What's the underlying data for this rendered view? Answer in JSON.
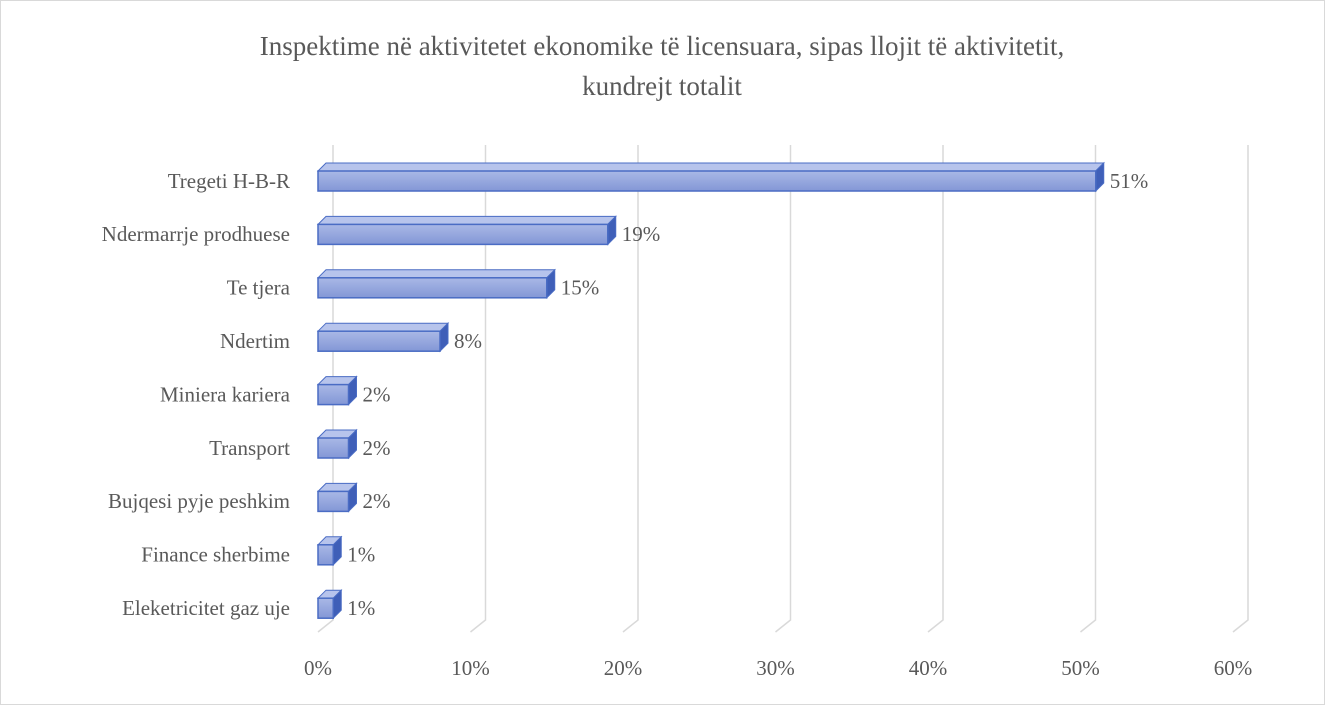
{
  "chart_data": {
    "type": "bar",
    "orientation": "horizontal",
    "title": "Inspektime në aktivitetet ekonomike të licensuara, sipas llojit të aktivitetit, kundrejt totalit",
    "categories": [
      "Tregeti H-B-R",
      "Ndermarrje prodhuese",
      "Te tjera ",
      "Ndertim",
      "Miniera kariera",
      "Transport",
      "Bujqesi pyje peshkim",
      "Finance sherbime",
      "Eleketricitet gaz uje"
    ],
    "values": [
      51,
      19,
      15,
      8,
      2,
      2,
      2,
      1,
      1
    ],
    "value_labels": [
      "51%",
      "19%",
      "15%",
      "8%",
      "2%",
      "2%",
      "2%",
      "1%",
      "1%"
    ],
    "color": "#8fa3dc",
    "xlim": [
      0,
      60
    ],
    "xticks": [
      {
        "value": 0,
        "label": "0%"
      },
      {
        "value": 10,
        "label": "10%"
      },
      {
        "value": 20,
        "label": "20%"
      },
      {
        "value": 30,
        "label": "30%"
      },
      {
        "value": 40,
        "label": "40%"
      },
      {
        "value": 50,
        "label": "50%"
      },
      {
        "value": 60,
        "label": "60%"
      }
    ],
    "grid": true
  }
}
